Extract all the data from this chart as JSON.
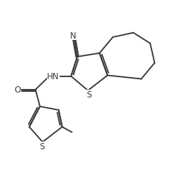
{
  "background_color": "#ffffff",
  "line_color": "#3a3a3a",
  "line_width": 1.4,
  "font_size": 8.5,
  "figsize": [
    2.61,
    2.55
  ],
  "dpi": 100,
  "xlim": [
    0,
    10
  ],
  "ylim": [
    0,
    10
  ]
}
